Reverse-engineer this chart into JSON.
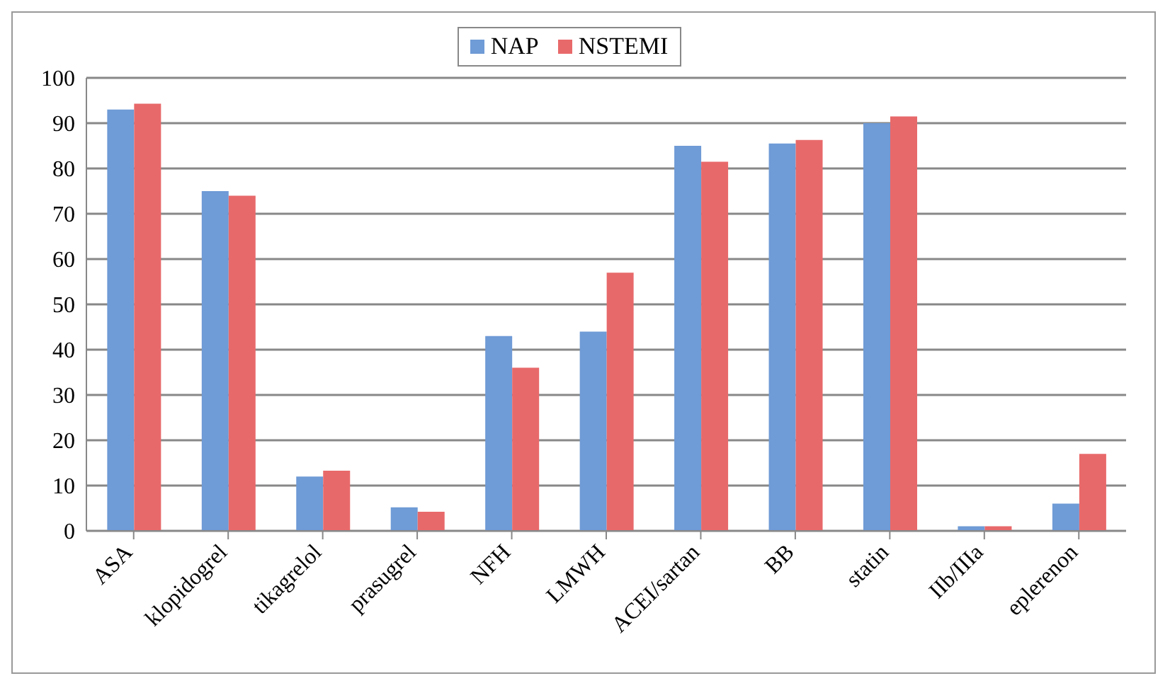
{
  "chart_data": {
    "type": "bar",
    "categories": [
      "ASA",
      "klopidogrel",
      "tikagrelol",
      "prasugrel",
      "NFH",
      "LMWH",
      "ACEI/sartan",
      "BB",
      "statin",
      "IIb/IIIa",
      "eplerenon"
    ],
    "series": [
      {
        "name": "NAP",
        "color": "#6f9bd6",
        "values": [
          93,
          75,
          12,
          5.2,
          43,
          44,
          85,
          85.5,
          90,
          1,
          6
        ]
      },
      {
        "name": "NSTEMI",
        "color": "#e8696a",
        "values": [
          94.3,
          74,
          13.3,
          4.2,
          36,
          57,
          81.5,
          86.3,
          91.5,
          1,
          17
        ]
      }
    ],
    "ylim": [
      0,
      100
    ],
    "yticks": [
      0,
      10,
      20,
      30,
      40,
      50,
      60,
      70,
      80,
      90,
      100
    ],
    "grid": "y",
    "legend": "top"
  }
}
